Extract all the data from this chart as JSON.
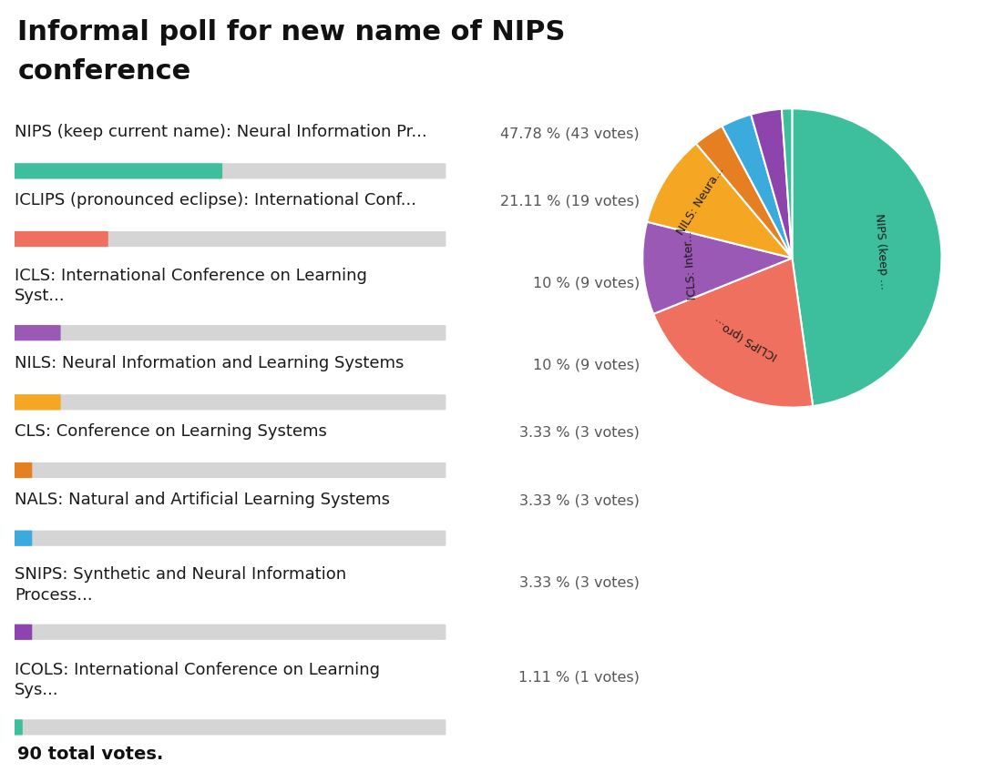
{
  "title_line1": "Informal poll for new name of NIPS",
  "title_line2": "conference",
  "total_votes": "90 total votes.",
  "entries": [
    {
      "label_line1": "NIPS (keep current name): Neural Information Pr...",
      "label_line2": "",
      "pct": 47.78,
      "pct_str": "47.78 % (43 votes)",
      "bar_color": "#3dbf9e",
      "pie_label": "NIPS (keep ..."
    },
    {
      "label_line1": "ICLIPS (pronounced eclipse): International Conf...",
      "label_line2": "",
      "pct": 21.11,
      "pct_str": "21.11 % (19 votes)",
      "bar_color": "#f07060",
      "pie_label": "ICLIPS (pro..."
    },
    {
      "label_line1": "ICLS: International Conference on Learning",
      "label_line2": "Syst...",
      "pct": 10.0,
      "pct_str": "10 % (9 votes)",
      "bar_color": "#9b59b6",
      "pie_label": "ICLS: Inter..."
    },
    {
      "label_line1": "NILS: Neural Information and Learning Systems",
      "label_line2": "",
      "pct": 10.0,
      "pct_str": "10 % (9 votes)",
      "bar_color": "#f5a623",
      "pie_label": "NILS: Neura..."
    },
    {
      "label_line1": "CLS: Conference on Learning Systems",
      "label_line2": "",
      "pct": 3.33,
      "pct_str": "3.33 % (3 votes)",
      "bar_color": "#e67e22",
      "pie_label": ""
    },
    {
      "label_line1": "NALS: Natural and Artificial Learning Systems",
      "label_line2": "",
      "pct": 3.33,
      "pct_str": "3.33 % (3 votes)",
      "bar_color": "#3aabdc",
      "pie_label": ""
    },
    {
      "label_line1": "SNIPS: Synthetic and Neural Information",
      "label_line2": "Process...",
      "pct": 3.33,
      "pct_str": "3.33 % (3 votes)",
      "bar_color": "#8e44ad",
      "pie_label": ""
    },
    {
      "label_line1": "ICOLS: International Conference on Learning",
      "label_line2": "Sys...",
      "pct": 1.11,
      "pct_str": "1.11 % (1 votes)",
      "bar_color": "#3dbf9e",
      "pie_label": ""
    }
  ],
  "bg_color": "#ffffff",
  "bar_bg_color": "#d5d5d5"
}
